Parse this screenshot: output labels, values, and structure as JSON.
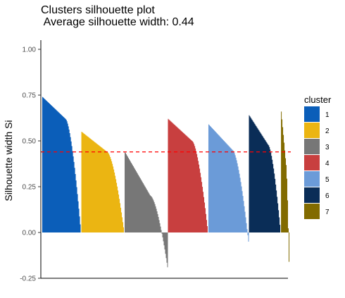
{
  "chart_data": {
    "type": "bar",
    "title": "Clusters silhouette plot",
    "subtitle": " Average silhouette width: 0.44",
    "ylabel": "Silhouette width Si",
    "xlabel": "",
    "ylim": [
      -0.25,
      1.05
    ],
    "yticks": [
      "1.00",
      "0.75",
      "0.50",
      "0.25",
      "0.00",
      "-0.25"
    ],
    "average_line": 0.44,
    "average_line_color": "#ff0000",
    "legend_title": "cluster",
    "legend_position": "right",
    "grid": false,
    "clusters": [
      {
        "name": "1",
        "color": "#0b5eb9",
        "size": 56,
        "max": 0.74,
        "knee": 0.62,
        "min": 0.0
      },
      {
        "name": "2",
        "color": "#ebb512",
        "size": 62,
        "max": 0.55,
        "knee": 0.44,
        "min": 0.0
      },
      {
        "name": "3",
        "color": "#777777",
        "size": 62,
        "max": 0.44,
        "knee": 0.2,
        "min": -0.19
      },
      {
        "name": "4",
        "color": "#c83f3f",
        "size": 58,
        "max": 0.62,
        "knee": 0.5,
        "min": 0.0
      },
      {
        "name": "5",
        "color": "#6b9bd8",
        "size": 58,
        "max": 0.59,
        "knee": 0.45,
        "min": -0.05
      },
      {
        "name": "6",
        "color": "#0a2d57",
        "size": 46,
        "max": 0.64,
        "knee": 0.48,
        "min": 0.0
      },
      {
        "name": "7",
        "color": "#826b00",
        "size": 12,
        "max": 0.66,
        "knee": 0.38,
        "min": -0.16
      }
    ]
  }
}
